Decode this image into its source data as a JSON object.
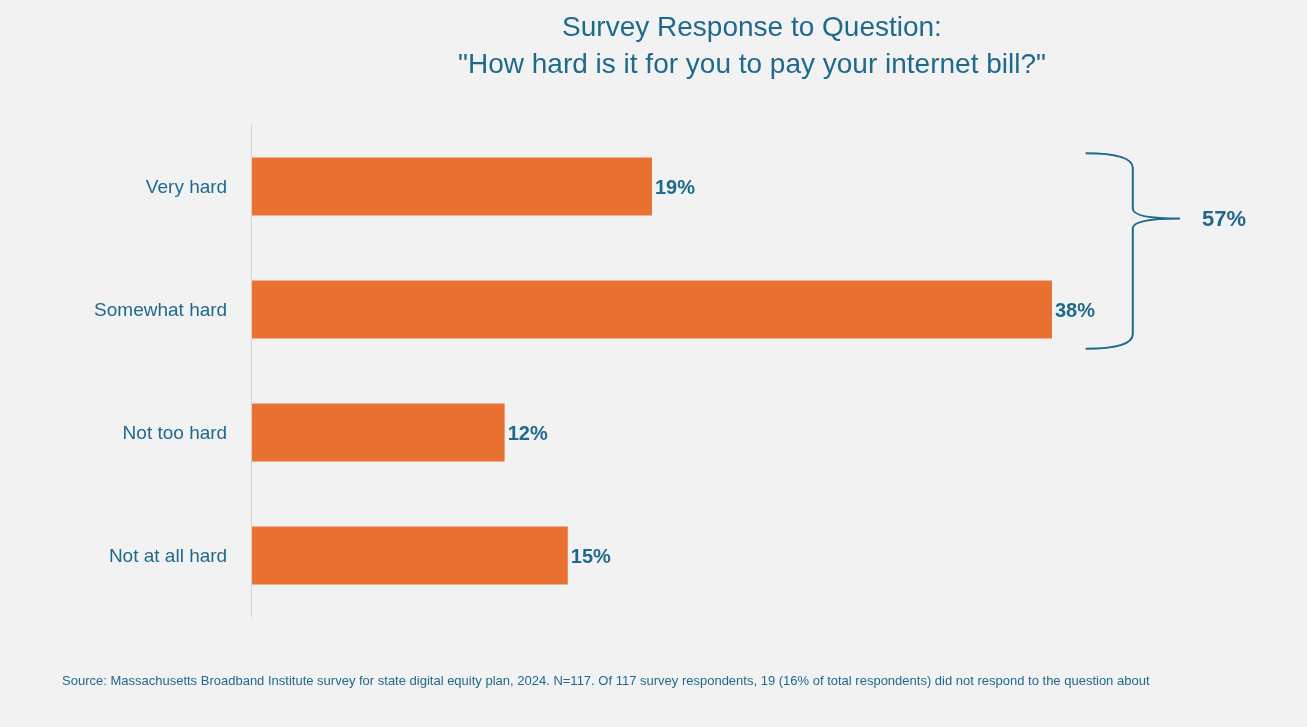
{
  "chart_data": {
    "type": "bar",
    "orientation": "horizontal",
    "title": "Survey Response to Question:\n\"How hard is it for you to pay your internet bill?\"",
    "categories": [
      "Very hard",
      "Somewhat hard",
      "Not too hard",
      "Not at all hard"
    ],
    "values": [
      19,
      38,
      12,
      15
    ],
    "color": "#e97132",
    "tick_labels": "y",
    "data_labels": true,
    "value_labels": [
      "19%",
      "38%",
      "12%",
      "15%"
    ],
    "grid": false,
    "annotations": [
      "57%",
      "Source: Massachusetts Broadband Institute survey for state digital equity plan, 2024. N=117. Of 117 survey respondents, 19 (16% of total respondents) did not respond to the question about"
    ]
  }
}
